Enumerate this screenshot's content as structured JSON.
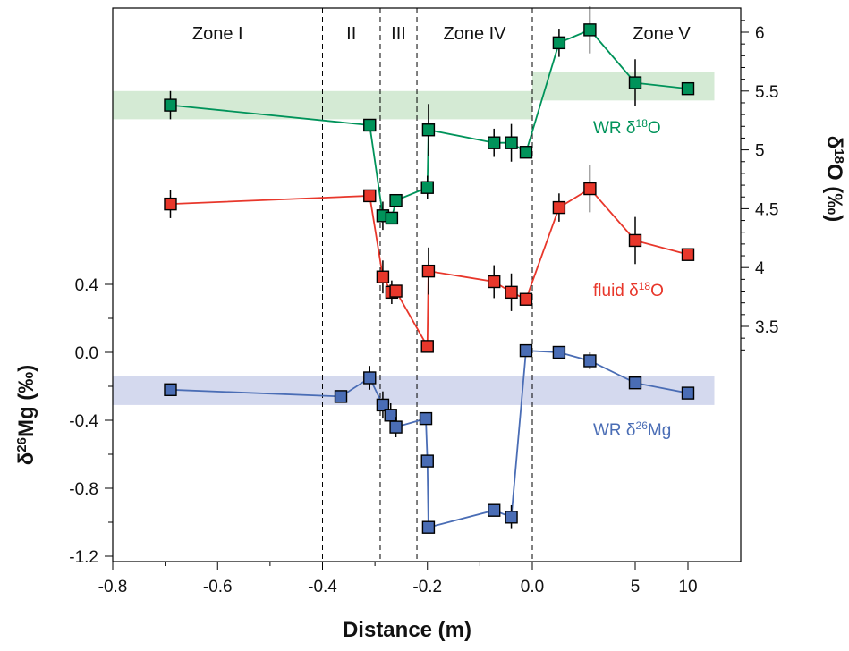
{
  "chart_data": {
    "type": "scatter",
    "xlabel": "Distance (m)",
    "ylabel_left": "δ26Mg (‰)",
    "ylabel_right": "δ18O (‰)",
    "x_ticks": [
      "-0.8",
      "-0.6",
      "-0.4",
      "-0.2",
      "0.0",
      "5",
      "10"
    ],
    "x_tick_values": [
      -0.8,
      -0.6,
      -0.4,
      -0.2,
      0.0,
      5,
      10
    ],
    "x_axis_note": "broken scale: linear from -0.8 to 0.0, then 0.0, 5, 10 spaced as if at 0.0, 0.15, 0.3 units",
    "y_left_ticks": [
      "0.4",
      "0.0",
      "-0.4",
      "-0.8",
      "-1.2"
    ],
    "y_left_tick_values": [
      0.4,
      0.0,
      -0.4,
      -0.8,
      -1.2
    ],
    "y_right_ticks": [
      "6",
      "5.5",
      "5",
      "4.5",
      "4",
      "3.5"
    ],
    "y_right_tick_values": [
      6,
      5.5,
      5,
      4.5,
      4,
      3.5
    ],
    "zone_boundaries": [
      -0.4,
      -0.29,
      -0.22,
      0.0
    ],
    "zones": [
      {
        "label": "Zone I",
        "x": -0.6
      },
      {
        "label": "II",
        "x": -0.345
      },
      {
        "label": "III",
        "x": -0.255
      },
      {
        "label": "Zone IV",
        "x": -0.11
      },
      {
        "label": "Zone V",
        "x": 7.5
      }
    ],
    "bands": [
      {
        "series": "WR δ18O",
        "axis": "right",
        "x_from": -0.8,
        "x_to": 0.0,
        "y_from": 5.26,
        "y_to": 5.5,
        "color": "#cfe8cf"
      },
      {
        "series": "WR δ18O",
        "axis": "right",
        "x_from": 0.0,
        "x_to": 12.5,
        "y_from": 5.42,
        "y_to": 5.66,
        "color": "#cfe8cf"
      },
      {
        "series": "WR δ26Mg",
        "axis": "left",
        "x_from": -0.8,
        "x_to": 12.5,
        "y_from": -0.31,
        "y_to": -0.14,
        "color": "#cfd5ec"
      }
    ],
    "series": [
      {
        "name": "WR δ18O",
        "axis": "right",
        "color": "#00935a",
        "points": [
          {
            "x": -0.69,
            "y": 5.38,
            "err": 0.12
          },
          {
            "x": -0.31,
            "y": 5.21
          },
          {
            "x": -0.285,
            "y": 4.44,
            "err": 0.12
          },
          {
            "x": -0.268,
            "y": 4.42
          },
          {
            "x": -0.26,
            "y": 4.57
          },
          {
            "x": -0.2,
            "y": 4.68,
            "err": 0.1
          },
          {
            "x": -0.198,
            "y": 5.17,
            "err": 0.22
          },
          {
            "x": -0.073,
            "y": 5.06,
            "err": 0.12
          },
          {
            "x": -0.04,
            "y": 5.06,
            "err": 0.16
          },
          {
            "x": -0.012,
            "y": 4.98
          },
          {
            "x": 1.3,
            "y": 5.91,
            "err": 0.12
          },
          {
            "x": 2.8,
            "y": 6.02,
            "err": 0.2
          },
          {
            "x": 5,
            "y": 5.57,
            "err": 0.2
          },
          {
            "x": 10,
            "y": 5.52
          }
        ]
      },
      {
        "name": "fluid δ18O",
        "axis": "right",
        "color": "#e8372b",
        "points": [
          {
            "x": -0.69,
            "y": 4.54,
            "err": 0.12
          },
          {
            "x": -0.31,
            "y": 4.61
          },
          {
            "x": -0.285,
            "y": 3.92,
            "err": 0.14
          },
          {
            "x": -0.268,
            "y": 3.79,
            "err": 0.1
          },
          {
            "x": -0.26,
            "y": 3.8
          },
          {
            "x": -0.2,
            "y": 3.33
          },
          {
            "x": -0.198,
            "y": 3.97,
            "err": 0.2
          },
          {
            "x": -0.073,
            "y": 3.88,
            "err": 0.14
          },
          {
            "x": -0.04,
            "y": 3.79,
            "err": 0.16
          },
          {
            "x": -0.012,
            "y": 3.73
          },
          {
            "x": 1.3,
            "y": 4.51,
            "err": 0.12
          },
          {
            "x": 2.8,
            "y": 4.67,
            "err": 0.2
          },
          {
            "x": 5,
            "y": 4.23,
            "err": 0.2
          },
          {
            "x": 10,
            "y": 4.11
          }
        ]
      },
      {
        "name": "WR δ26Mg",
        "axis": "left",
        "color": "#4a6db5",
        "points": [
          {
            "x": -0.69,
            "y": -0.22
          },
          {
            "x": -0.365,
            "y": -0.26
          },
          {
            "x": -0.31,
            "y": -0.15,
            "err": 0.07
          },
          {
            "x": -0.285,
            "y": -0.31,
            "err": 0.08
          },
          {
            "x": -0.27,
            "y": -0.37,
            "err": 0.07
          },
          {
            "x": -0.26,
            "y": -0.44,
            "err": 0.06
          },
          {
            "x": -0.203,
            "y": -0.39
          },
          {
            "x": -0.2,
            "y": -0.64
          },
          {
            "x": -0.198,
            "y": -1.03
          },
          {
            "x": -0.073,
            "y": -0.93
          },
          {
            "x": -0.04,
            "y": -0.97,
            "err": 0.07
          },
          {
            "x": -0.012,
            "y": 0.01
          },
          {
            "x": 1.3,
            "y": 0.0
          },
          {
            "x": 2.8,
            "y": -0.05,
            "err": 0.05
          },
          {
            "x": 5,
            "y": -0.18
          },
          {
            "x": 10,
            "y": -0.24
          }
        ]
      }
    ],
    "series_labels": [
      {
        "text": "WR δ18O",
        "color": "#00935a"
      },
      {
        "text": "fluid δ18O",
        "color": "#e8372b"
      },
      {
        "text": "WR δ26Mg",
        "color": "#4a6db5"
      }
    ]
  }
}
